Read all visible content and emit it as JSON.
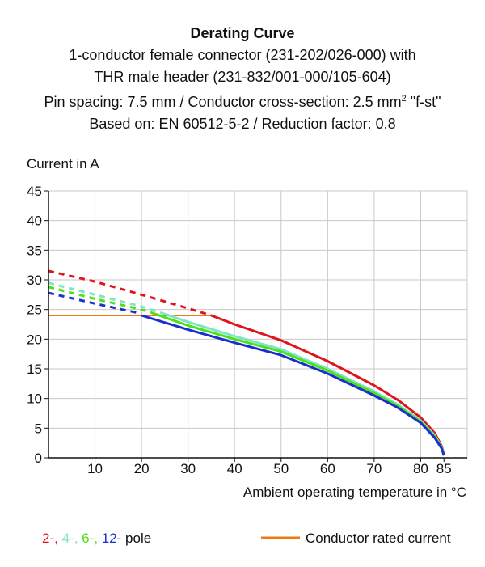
{
  "titles": {
    "main": "Derating Curve",
    "line2": "1-conductor female connector (231-202/026-000) with",
    "line3": "THR male header (231-832/001-000/105-604)",
    "line4_pre": "Pin spacing: 7.5 mm / Conductor cross-section: 2.5 mm",
    "line4_sup": "2",
    "line4_post": " \"f-st\"",
    "line5": "Based on: EN 60512-5-2 / Reduction factor: 0.8"
  },
  "legend": {
    "pole_parts": [
      {
        "text": "2-",
        "color": "#e0141e"
      },
      {
        "text": ", ",
        "color": "#e0141e"
      },
      {
        "text": "4-",
        "color": "#7fe5c3"
      },
      {
        "text": ", ",
        "color": "#7fe5c3"
      },
      {
        "text": "6-",
        "color": "#4ce01b"
      },
      {
        "text": ", ",
        "color": "#4ce01b"
      },
      {
        "text": "12-",
        "color": "#1a2fd0"
      },
      {
        "text": " pole",
        "color": "#111111"
      }
    ],
    "rated_label": "Conductor rated current",
    "rated_color": "#f07a12"
  },
  "chart_data": {
    "type": "line",
    "ylabel": "Current in A",
    "xlabel": "Ambient operating temperature in °C",
    "xlim": [
      0,
      90
    ],
    "ylim": [
      0,
      45
    ],
    "x_ticks": [
      10,
      20,
      30,
      40,
      50,
      60,
      70,
      80,
      85
    ],
    "y_ticks": [
      0,
      5,
      10,
      15,
      20,
      25,
      30,
      35,
      40,
      45
    ],
    "grid": true,
    "series": [
      {
        "name": "2-pole",
        "color": "#e0141e",
        "dashed": [
          [
            0,
            31.5
          ],
          [
            10,
            29.7
          ],
          [
            20,
            27.5
          ],
          [
            30,
            25.2
          ],
          [
            35,
            24
          ]
        ],
        "solid": [
          [
            35,
            24
          ],
          [
            40,
            22.5
          ],
          [
            50,
            19.8
          ],
          [
            60,
            16.3
          ],
          [
            70,
            12.2
          ],
          [
            75,
            9.8
          ],
          [
            80,
            6.8
          ],
          [
            83,
            4.2
          ],
          [
            84.5,
            2
          ],
          [
            85,
            0.5
          ]
        ]
      },
      {
        "name": "4-pole",
        "color": "#7fe5c3",
        "dashed": [
          [
            0,
            29.5
          ],
          [
            10,
            27.5
          ],
          [
            20,
            25.5
          ],
          [
            24,
            24.5
          ]
        ],
        "solid": [
          [
            24,
            24.5
          ],
          [
            30,
            22.9
          ],
          [
            40,
            20.5
          ],
          [
            50,
            18.3
          ],
          [
            60,
            15
          ],
          [
            70,
            11.2
          ],
          [
            75,
            9
          ],
          [
            80,
            6.3
          ],
          [
            83,
            3.8
          ],
          [
            84.5,
            1.8
          ],
          [
            85,
            0.5
          ]
        ]
      },
      {
        "name": "6-pole",
        "color": "#4ce01b",
        "dashed": [
          [
            0,
            28.8
          ],
          [
            10,
            26.8
          ],
          [
            20,
            25
          ],
          [
            22,
            24.5
          ]
        ],
        "solid": [
          [
            22,
            24.5
          ],
          [
            30,
            22.3
          ],
          [
            40,
            20
          ],
          [
            50,
            17.9
          ],
          [
            60,
            14.7
          ],
          [
            70,
            10.9
          ],
          [
            75,
            8.8
          ],
          [
            80,
            6.1
          ],
          [
            83,
            3.6
          ],
          [
            84.5,
            1.7
          ],
          [
            85,
            0.5
          ]
        ]
      },
      {
        "name": "12-pole",
        "color": "#1a2fd0",
        "dashed": [
          [
            0,
            27.8
          ],
          [
            10,
            26
          ],
          [
            20,
            24.3
          ]
        ],
        "solid": [
          [
            20,
            24
          ],
          [
            30,
            21.6
          ],
          [
            40,
            19.4
          ],
          [
            50,
            17.3
          ],
          [
            60,
            14.2
          ],
          [
            70,
            10.5
          ],
          [
            75,
            8.5
          ],
          [
            80,
            5.9
          ],
          [
            83,
            3.4
          ],
          [
            84.5,
            1.6
          ],
          [
            85,
            0.4
          ]
        ]
      },
      {
        "name": "Conductor rated current",
        "color": "#f07a12",
        "solid": [
          [
            0,
            24
          ],
          [
            35,
            24
          ]
        ]
      }
    ]
  }
}
